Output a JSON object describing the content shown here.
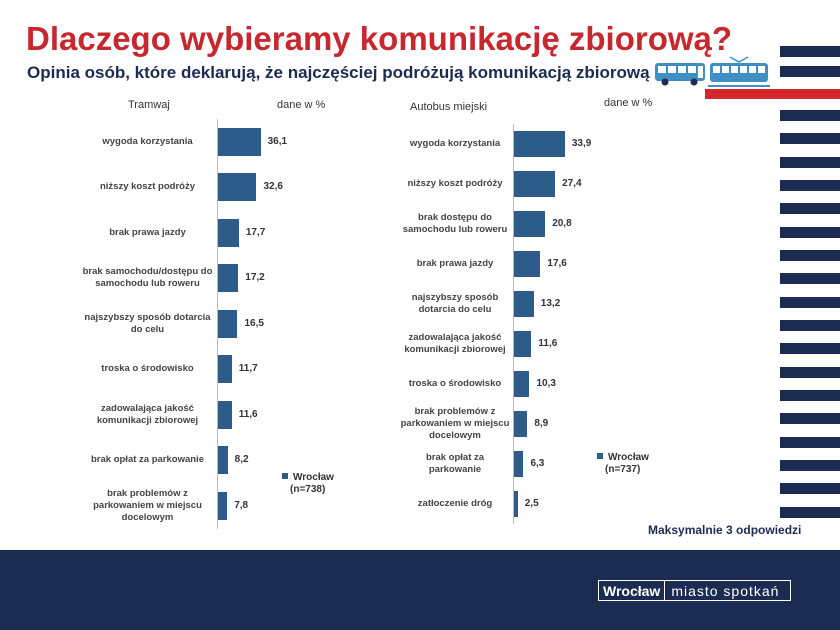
{
  "title": "Dlaczego wybieramy komunikację zbiorową?",
  "subtitle": "Opinia osób, które deklarują, że najczęściej podróżują komunikacją zbiorową",
  "icons": [
    "bus-icon",
    "tram-icon"
  ],
  "colors": {
    "accent": "#c6282e",
    "navy": "#1c2b52",
    "bar": "#2e5c8a"
  },
  "chart_data": [
    {
      "type": "bar",
      "orientation": "horizontal",
      "title": "Tramwaj",
      "unit_label": "dane w %",
      "series": [
        {
          "name": "Wrocław",
          "n": "(n=738)"
        }
      ],
      "legend_label": "Wrocław",
      "legend_n": "(n=738)",
      "categories": [
        "wygoda korzystania",
        "niższy koszt podróży",
        "brak prawa jazdy",
        "brak samochodu/dostępu do samochodu lub roweru",
        "najszybszy sposób dotarcia do celu",
        "troska o środowisko",
        "zadowalająca jakość komunikacji zbiorowej",
        "brak opłat za parkowanie",
        "brak problemów z parkowaniem w miejscu docelowym"
      ],
      "values": [
        36.1,
        32.6,
        17.7,
        17.2,
        16.5,
        11.7,
        11.6,
        8.2,
        7.8
      ],
      "value_labels": [
        "36,1",
        "32,6",
        "17,7",
        "17,2",
        "16,5",
        "11,7",
        "11,6",
        "8,2",
        "7,8"
      ],
      "xlim": [
        0,
        100
      ]
    },
    {
      "type": "bar",
      "orientation": "horizontal",
      "title": "Autobus miejski",
      "unit_label": "dane w %",
      "series": [
        {
          "name": "Wrocław",
          "n": "(n=737)"
        }
      ],
      "legend_label": "Wrocław",
      "legend_n": "(n=737)",
      "categories": [
        "wygoda korzystania",
        "niższy koszt podróży",
        "brak dostępu do samochodu lub roweru",
        "brak prawa jazdy",
        "najszybszy sposób dotarcia do celu",
        "zadowalająca jakość komunikacji zbiorowej",
        "troska o środowisko",
        "brak problemów z parkowaniem w miejscu docelowym",
        "brak opłat za parkowanie",
        "zatłoczenie dróg"
      ],
      "values": [
        33.9,
        27.4,
        20.8,
        17.6,
        13.2,
        11.6,
        10.3,
        8.9,
        6.3,
        2.5
      ],
      "value_labels": [
        "33,9",
        "27,4",
        "20,8",
        "17,6",
        "13,2",
        "11,6",
        "10,3",
        "8,9",
        "6,3",
        "2,5"
      ],
      "xlim": [
        0,
        100
      ]
    }
  ],
  "note": "Maksymalnie 3 odpowiedzi",
  "footer": {
    "city": "Wrocław",
    "tagline": "miasto spotkań"
  }
}
